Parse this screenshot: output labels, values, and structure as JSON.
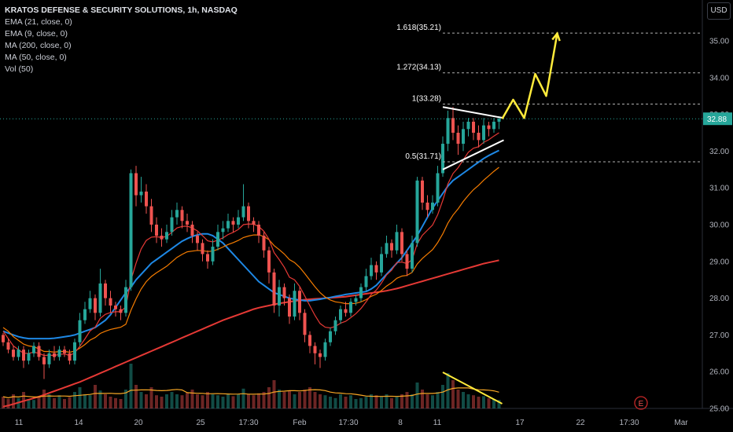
{
  "legend": {
    "title": "KRATOS DEFENSE & SECURITY SOLUTIONS, 1h, NASDAQ",
    "lines": [
      "EMA (21, close, 0)",
      "EMA (9, close, 0)",
      "MA (200, close, 0)",
      "MA (50, close, 0)",
      "Vol (50)"
    ]
  },
  "currency": "USD",
  "earnings_marker": "E",
  "chart_data": {
    "type": "candlestick",
    "symbol": "KRATOS DEFENSE & SECURITY SOLUTIONS",
    "interval": "1h",
    "exchange": "NASDAQ",
    "ylim": [
      25.0,
      35.6
    ],
    "y_ticks": [
      "25.00",
      "26.00",
      "27.00",
      "28.00",
      "29.00",
      "30.00",
      "31.00",
      "32.00",
      "33.00",
      "34.00",
      "35.00"
    ],
    "x_ticks": [
      "11",
      "14",
      "20",
      "25",
      "17:30",
      "Feb",
      "17:30",
      "8",
      "11",
      "17",
      "22",
      "17:30",
      "Mar"
    ],
    "last_price": "32.88",
    "colors": {
      "up": "#26a69a",
      "down": "#ef5350",
      "ema21": "#f57c00",
      "ema9": "#e53935",
      "ma200": "#e53935",
      "ma50": "#1e88e5",
      "projection": "#ffeb3b",
      "trendline": "#ffffff",
      "volume_ma": "#f9a825"
    },
    "candles": [
      [
        27.0,
        26.8,
        27.05,
        26.7
      ],
      [
        26.8,
        26.6,
        26.9,
        26.5
      ],
      [
        26.6,
        26.4,
        26.7,
        26.3
      ],
      [
        26.4,
        26.6,
        26.7,
        26.3
      ],
      [
        26.6,
        26.3,
        26.7,
        26.1
      ],
      [
        26.3,
        26.5,
        26.6,
        26.2
      ],
      [
        26.5,
        26.7,
        26.8,
        26.4
      ],
      [
        26.7,
        26.4,
        26.8,
        26.3
      ],
      [
        26.4,
        26.2,
        26.5,
        25.8
      ],
      [
        26.2,
        26.5,
        26.6,
        26.1
      ],
      [
        26.5,
        26.4,
        26.7,
        26.3
      ],
      [
        26.4,
        26.6,
        26.7,
        26.3
      ],
      [
        26.6,
        26.5,
        26.7,
        26.4
      ],
      [
        26.5,
        26.3,
        26.6,
        26.2
      ],
      [
        26.3,
        26.8,
        26.9,
        26.2
      ],
      [
        26.8,
        27.4,
        27.6,
        26.7
      ],
      [
        27.4,
        27.7,
        27.9,
        27.3
      ],
      [
        27.7,
        28.0,
        28.2,
        27.6
      ],
      [
        28.0,
        27.6,
        28.1,
        27.4
      ],
      [
        27.6,
        28.4,
        28.8,
        27.5
      ],
      [
        28.4,
        28.0,
        28.5,
        27.8
      ],
      [
        28.0,
        27.8,
        28.2,
        27.6
      ],
      [
        27.8,
        27.7,
        27.9,
        27.5
      ],
      [
        27.7,
        27.6,
        27.8,
        27.4
      ],
      [
        27.6,
        28.3,
        28.5,
        27.5
      ],
      [
        28.3,
        31.4,
        31.5,
        28.2
      ],
      [
        31.4,
        30.8,
        31.6,
        30.5
      ],
      [
        30.8,
        30.9,
        31.3,
        30.6
      ],
      [
        30.9,
        30.5,
        31.1,
        30.3
      ],
      [
        30.5,
        30.0,
        30.7,
        29.8
      ],
      [
        30.0,
        29.7,
        30.2,
        29.5
      ],
      [
        29.7,
        29.6,
        29.9,
        29.4
      ],
      [
        29.6,
        29.8,
        30.0,
        29.5
      ],
      [
        29.8,
        30.2,
        30.4,
        29.7
      ],
      [
        30.2,
        30.4,
        30.6,
        30.0
      ],
      [
        30.4,
        30.1,
        30.5,
        29.9
      ],
      [
        30.1,
        30.0,
        30.3,
        29.8
      ],
      [
        30.0,
        29.7,
        30.1,
        29.5
      ],
      [
        29.7,
        29.5,
        29.8,
        29.3
      ],
      [
        29.5,
        29.2,
        29.6,
        29.0
      ],
      [
        29.2,
        29.0,
        29.3,
        28.8
      ],
      [
        29.0,
        29.4,
        29.6,
        28.9
      ],
      [
        29.4,
        29.8,
        30.0,
        29.3
      ],
      [
        29.8,
        29.9,
        30.1,
        29.6
      ],
      [
        29.9,
        30.1,
        30.3,
        29.8
      ],
      [
        30.1,
        30.0,
        30.2,
        29.8
      ],
      [
        30.0,
        30.2,
        30.4,
        29.9
      ],
      [
        30.2,
        30.5,
        31.1,
        30.1
      ],
      [
        30.5,
        30.1,
        30.6,
        29.9
      ],
      [
        30.1,
        30.0,
        30.2,
        29.8
      ],
      [
        30.0,
        29.7,
        30.1,
        29.5
      ],
      [
        29.7,
        29.3,
        29.8,
        29.1
      ],
      [
        29.3,
        28.7,
        29.4,
        28.4
      ],
      [
        28.7,
        27.8,
        28.8,
        27.6
      ],
      [
        27.8,
        28.3,
        28.5,
        27.5
      ],
      [
        28.3,
        28.0,
        28.4,
        27.8
      ],
      [
        28.0,
        27.5,
        28.1,
        27.3
      ],
      [
        27.5,
        28.2,
        28.4,
        27.4
      ],
      [
        28.2,
        27.6,
        28.3,
        27.4
      ],
      [
        27.6,
        27.0,
        27.7,
        26.8
      ],
      [
        27.0,
        26.7,
        27.1,
        26.5
      ],
      [
        26.7,
        26.5,
        26.8,
        26.2
      ],
      [
        26.5,
        26.4,
        26.6,
        26.1
      ],
      [
        26.4,
        26.8,
        26.9,
        26.3
      ],
      [
        26.8,
        27.1,
        27.2,
        26.7
      ],
      [
        27.1,
        27.4,
        27.5,
        27.0
      ],
      [
        27.4,
        27.7,
        27.8,
        27.3
      ],
      [
        27.7,
        27.6,
        27.9,
        27.5
      ],
      [
        27.6,
        27.9,
        28.0,
        27.5
      ],
      [
        27.9,
        28.0,
        28.1,
        27.8
      ],
      [
        28.0,
        28.3,
        28.4,
        27.9
      ],
      [
        28.3,
        28.6,
        28.8,
        28.2
      ],
      [
        28.6,
        28.9,
        29.1,
        28.5
      ],
      [
        28.9,
        28.7,
        29.0,
        28.5
      ],
      [
        28.7,
        29.2,
        29.4,
        28.6
      ],
      [
        29.2,
        29.5,
        29.7,
        29.1
      ],
      [
        29.5,
        29.3,
        29.6,
        29.1
      ],
      [
        29.3,
        29.8,
        30.0,
        29.2
      ],
      [
        29.8,
        29.2,
        29.9,
        29.0
      ],
      [
        29.2,
        28.8,
        29.3,
        28.6
      ],
      [
        28.8,
        29.5,
        29.7,
        28.7
      ],
      [
        29.5,
        31.2,
        31.3,
        29.4
      ],
      [
        31.2,
        30.6,
        31.3,
        30.4
      ],
      [
        30.6,
        30.4,
        30.8,
        30.2
      ],
      [
        30.4,
        30.6,
        30.8,
        30.3
      ],
      [
        30.6,
        31.4,
        31.6,
        30.5
      ],
      [
        31.4,
        32.2,
        32.4,
        31.3
      ],
      [
        32.2,
        32.9,
        33.1,
        32.0
      ],
      [
        32.9,
        32.5,
        33.2,
        32.3
      ],
      [
        32.5,
        32.2,
        32.7,
        31.9
      ],
      [
        32.2,
        32.6,
        32.8,
        32.0
      ],
      [
        32.6,
        32.8,
        32.9,
        32.4
      ],
      [
        32.8,
        32.5,
        32.9,
        32.3
      ],
      [
        32.5,
        32.3,
        32.7,
        32.1
      ],
      [
        32.3,
        32.7,
        32.9,
        32.2
      ],
      [
        32.7,
        32.6,
        32.8,
        32.4
      ],
      [
        32.6,
        32.8,
        32.9,
        32.5
      ],
      [
        32.8,
        32.88,
        32.95,
        32.6
      ]
    ],
    "volume": [
      0.25,
      0.2,
      0.3,
      0.22,
      0.35,
      0.2,
      0.18,
      0.25,
      0.4,
      0.3,
      0.22,
      0.28,
      0.2,
      0.24,
      0.35,
      0.45,
      0.3,
      0.28,
      0.5,
      0.38,
      0.3,
      0.25,
      0.22,
      0.2,
      0.4,
      0.95,
      0.5,
      0.35,
      0.3,
      0.45,
      0.28,
      0.25,
      0.3,
      0.35,
      0.3,
      0.28,
      0.33,
      0.4,
      0.3,
      0.28,
      0.35,
      0.3,
      0.28,
      0.25,
      0.3,
      0.26,
      0.3,
      0.42,
      0.3,
      0.28,
      0.32,
      0.35,
      0.45,
      0.6,
      0.4,
      0.35,
      0.38,
      0.3,
      0.35,
      0.4,
      0.45,
      0.35,
      0.3,
      0.28,
      0.25,
      0.22,
      0.3,
      0.25,
      0.28,
      0.2,
      0.22,
      0.25,
      0.3,
      0.28,
      0.25,
      0.3,
      0.22,
      0.26,
      0.3,
      0.35,
      0.3,
      0.55,
      0.4,
      0.3,
      0.28,
      0.35,
      0.5,
      0.75,
      0.6,
      0.4,
      0.35,
      0.3,
      0.28,
      0.25,
      0.26,
      0.22,
      0.2,
      0.18
    ],
    "ema21": [
      27.2,
      27.1,
      26.95,
      26.85,
      26.75,
      26.7,
      26.68,
      26.62,
      26.55,
      26.55,
      26.53,
      26.55,
      26.55,
      26.53,
      26.56,
      26.64,
      26.74,
      26.86,
      26.93,
      27.04,
      27.1,
      27.15,
      27.18,
      27.21,
      27.29,
      27.67,
      27.98,
      28.25,
      28.45,
      28.59,
      28.69,
      28.78,
      28.87,
      28.99,
      29.11,
      29.19,
      29.26,
      29.28,
      29.3,
      29.29,
      29.27,
      29.28,
      29.33,
      29.39,
      29.46,
      29.51,
      29.57,
      29.65,
      29.69,
      29.72,
      29.72,
      29.68,
      29.59,
      29.43,
      29.32,
      29.2,
      29.05,
      28.97,
      28.84,
      28.67,
      28.49,
      28.31,
      28.15,
      28.03,
      27.95,
      27.9,
      27.88,
      27.85,
      27.85,
      27.86,
      27.9,
      27.96,
      28.05,
      28.11,
      28.21,
      28.33,
      28.42,
      28.54,
      28.6,
      28.62,
      28.7,
      28.93,
      29.08,
      29.2,
      29.32,
      29.51,
      29.75,
      30.04,
      30.26,
      30.43,
      30.63,
      30.8,
      30.95,
      31.07,
      31.21,
      31.33,
      31.45,
      31.56
    ],
    "ema9": [
      27.1,
      26.9,
      26.7,
      26.6,
      26.5,
      26.5,
      26.53,
      26.5,
      26.44,
      26.45,
      26.44,
      26.47,
      26.48,
      26.44,
      26.51,
      26.69,
      26.89,
      27.11,
      27.21,
      27.45,
      27.56,
      27.61,
      27.63,
      27.63,
      27.77,
      28.49,
      28.95,
      29.34,
      29.57,
      29.66,
      29.67,
      29.65,
      29.68,
      29.79,
      29.91,
      29.95,
      29.96,
      29.91,
      29.83,
      29.7,
      29.56,
      29.53,
      29.58,
      29.64,
      29.73,
      29.79,
      29.87,
      30.0,
      30.02,
      30.01,
      29.95,
      29.82,
      29.6,
      29.24,
      29.05,
      28.84,
      28.57,
      28.5,
      28.32,
      28.06,
      27.79,
      27.53,
      27.31,
      27.21,
      27.19,
      27.23,
      27.32,
      27.37,
      27.47,
      27.58,
      27.72,
      27.9,
      28.1,
      28.22,
      28.41,
      28.63,
      28.76,
      28.97,
      28.98,
      28.94,
      29.05,
      29.48,
      29.71,
      29.85,
      29.99,
      30.27,
      30.66,
      31.11,
      31.39,
      31.55,
      31.76,
      31.97,
      32.08,
      32.12,
      32.24,
      32.31,
      32.41,
      32.5
    ],
    "ma50": [
      27.1,
      27.05,
      27.0,
      26.95,
      26.92,
      26.9,
      26.9,
      26.9,
      26.9,
      26.9,
      26.91,
      26.93,
      26.95,
      26.97,
      27.0,
      27.05,
      27.1,
      27.15,
      27.2,
      27.3,
      27.4,
      27.55,
      27.75,
      27.95,
      28.15,
      28.3,
      28.5,
      28.65,
      28.8,
      28.95,
      29.05,
      29.15,
      29.25,
      29.35,
      29.45,
      29.55,
      29.62,
      29.68,
      29.72,
      29.75,
      29.75,
      29.7,
      29.6,
      29.5,
      29.35,
      29.2,
      29.05,
      28.9,
      28.75,
      28.6,
      28.45,
      28.35,
      28.25,
      28.15,
      28.1,
      28.05,
      28.0,
      27.97,
      27.95,
      27.93,
      27.93,
      27.95,
      27.97,
      28.0,
      28.02,
      28.05,
      28.07,
      28.1,
      28.12,
      28.14,
      28.16,
      28.18,
      28.25,
      28.35,
      28.5,
      28.65,
      28.8,
      28.95,
      29.1,
      29.3,
      29.5,
      29.7,
      29.95,
      30.2,
      30.45,
      30.65,
      30.85,
      31.05,
      31.2,
      31.3,
      31.4,
      31.5,
      31.6,
      31.7,
      31.8,
      31.88,
      31.95,
      32.02
    ],
    "ma200": [
      25.05,
      25.08,
      25.12,
      25.16,
      25.2,
      25.24,
      25.28,
      25.32,
      25.37,
      25.42,
      25.47,
      25.52,
      25.57,
      25.62,
      25.67,
      25.72,
      25.78,
      25.84,
      25.9,
      25.96,
      26.02,
      26.08,
      26.14,
      26.2,
      26.26,
      26.32,
      26.38,
      26.44,
      26.5,
      26.56,
      26.62,
      26.68,
      26.74,
      26.8,
      26.86,
      26.92,
      26.98,
      27.04,
      27.1,
      27.16,
      27.22,
      27.28,
      27.34,
      27.4,
      27.45,
      27.5,
      27.55,
      27.6,
      27.65,
      27.7,
      27.74,
      27.77,
      27.8,
      27.83,
      27.86,
      27.88,
      27.9,
      27.92,
      27.94,
      27.96,
      27.97,
      27.98,
      27.99,
      28.0,
      28.01,
      28.02,
      28.03,
      28.04,
      28.06,
      28.08,
      28.1,
      28.12,
      28.14,
      28.16,
      28.18,
      28.2,
      28.23,
      28.26,
      28.3,
      28.34,
      28.38,
      28.42,
      28.46,
      28.5,
      28.54,
      28.58,
      28.62,
      28.66,
      28.7,
      28.74,
      28.78,
      28.82,
      28.86,
      28.9,
      28.94,
      28.97,
      29.0,
      29.03
    ],
    "fib_levels": [
      {
        "label": "1.618(35.21)",
        "value": 35.21
      },
      {
        "label": "1.272(34.13)",
        "value": 34.13
      },
      {
        "label": "1(33.28)",
        "value": 33.28
      },
      {
        "label": "0.5(31.71)",
        "value": 31.71
      }
    ],
    "projection_path": [
      [
        0,
        32.88
      ],
      [
        1,
        33.4
      ],
      [
        2,
        32.9
      ],
      [
        3,
        34.1
      ],
      [
        4,
        33.5
      ],
      [
        5,
        35.2
      ]
    ],
    "triangle": {
      "upper": [
        33.2,
        32.9
      ],
      "lower": [
        31.5,
        32.3
      ]
    },
    "volume_divergence": "down"
  }
}
